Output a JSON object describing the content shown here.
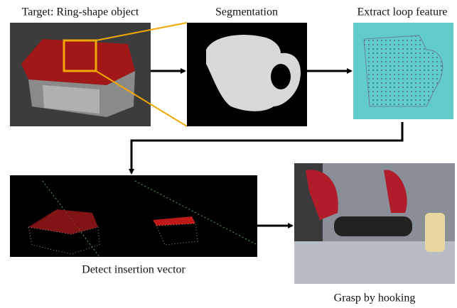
{
  "labels": {
    "target": "Target: Ring-shape object",
    "segmentation": "Segmentation",
    "extract": "Extract loop feature",
    "detect": "Detect insertion vector",
    "grasp": "Grasp by hooking"
  }
}
